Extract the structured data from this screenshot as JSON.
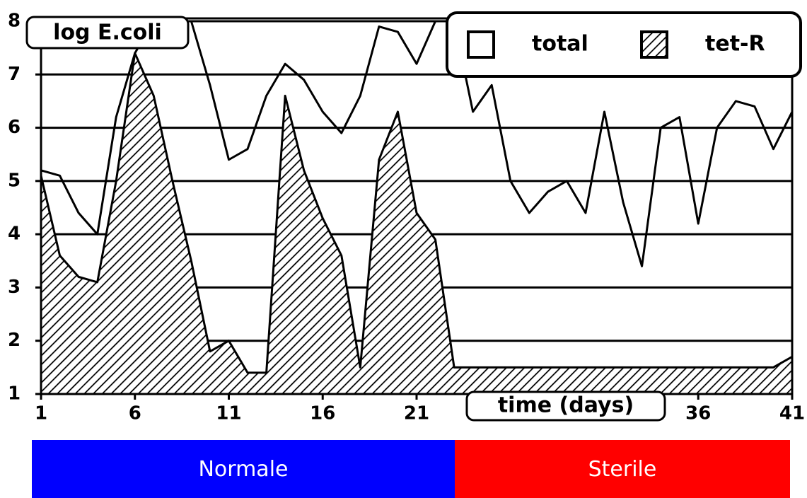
{
  "chart_data": {
    "type": "area",
    "y_label": "log E.coli",
    "x_label": "time (days)",
    "x": [
      1,
      2,
      3,
      4,
      5,
      6,
      7,
      8,
      9,
      10,
      11,
      12,
      13,
      14,
      15,
      16,
      17,
      18,
      19,
      20,
      21,
      22,
      23,
      24,
      25,
      26,
      27,
      28,
      29,
      30,
      31,
      32,
      33,
      34,
      35,
      36,
      37,
      38,
      39,
      40,
      41
    ],
    "series": [
      {
        "name": "total",
        "color": "#ffffff",
        "pattern": "none",
        "values": [
          5.2,
          5.1,
          4.4,
          4.0,
          6.2,
          7.4,
          8,
          8,
          8,
          6.8,
          5.4,
          5.6,
          6.6,
          7.2,
          6.9,
          6.3,
          5.9,
          6.6,
          7.9,
          7.8,
          7.2,
          8,
          8,
          6.3,
          6.8,
          5.0,
          4.4,
          4.8,
          5.0,
          4.4,
          6.3,
          4.6,
          3.4,
          6.0,
          6.2,
          4.2,
          6.0,
          6.5,
          6.4,
          5.6,
          6.3
        ]
      },
      {
        "name": "tet-R",
        "color": "#000000",
        "pattern": "hatch",
        "values": [
          5.1,
          3.6,
          3.2,
          3.1,
          5.0,
          7.4,
          6.6,
          5.0,
          3.5,
          1.8,
          2.0,
          1.4,
          1.4,
          6.6,
          5.2,
          4.3,
          3.6,
          1.5,
          5.4,
          6.3,
          4.4,
          3.9,
          1.5,
          1.5,
          1.5,
          1.5,
          1.5,
          1.5,
          1.5,
          1.5,
          1.5,
          1.5,
          1.5,
          1.5,
          1.5,
          1.5,
          1.5,
          1.5,
          1.5,
          1.5,
          1.7
        ]
      }
    ],
    "xlim": [
      1,
      41
    ],
    "ylim": [
      1,
      8
    ],
    "xticks": [
      1,
      6,
      11,
      16,
      21,
      36,
      41
    ],
    "yticks": [
      1,
      2,
      3,
      4,
      5,
      6,
      7,
      8
    ],
    "grid": true,
    "legend": "top-right",
    "periods": [
      {
        "label": "Normale",
        "color": "#0000ff"
      },
      {
        "label": "Sterile",
        "color": "#ff0000"
      }
    ]
  }
}
